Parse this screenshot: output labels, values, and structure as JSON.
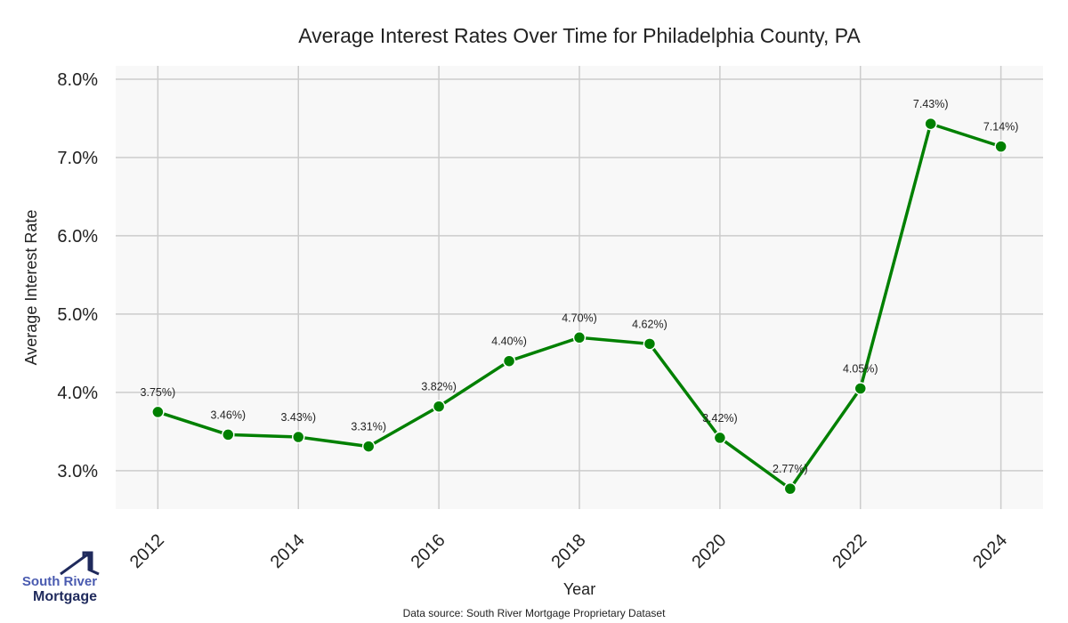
{
  "chart_data": {
    "type": "line",
    "title": "Average Interest Rates Over Time for Philadelphia County, PA",
    "xlabel": "Year",
    "ylabel": "Average Interest Rate",
    "x": [
      2012,
      2013,
      2014,
      2015,
      2016,
      2017,
      2018,
      2019,
      2020,
      2021,
      2022,
      2023,
      2024
    ],
    "values": [
      3.75,
      3.46,
      3.43,
      3.31,
      3.82,
      4.4,
      4.7,
      4.62,
      3.42,
      2.77,
      4.05,
      7.43,
      7.14
    ],
    "data_labels": [
      "3.75%)",
      "3.46%)",
      "3.43%)",
      "3.31%)",
      "3.82%)",
      "4.40%)",
      "4.70%)",
      "4.62%)",
      "3.42%)",
      "2.77%)",
      "4.05%)",
      "7.43%)",
      "7.14%)"
    ],
    "xticks": [
      2012,
      2014,
      2016,
      2018,
      2020,
      2022,
      2024
    ],
    "xtick_labels": [
      "2012",
      "2014",
      "2016",
      "2018",
      "2020",
      "2022",
      "2024"
    ],
    "yticks": [
      3,
      4,
      5,
      6,
      7,
      8
    ],
    "ytick_labels": [
      "3.0%",
      "4.0%",
      "5.0%",
      "6.0%",
      "7.0%",
      "8.0%"
    ],
    "xlim": [
      2011.4,
      2024.6
    ],
    "ylim": [
      2.51,
      8.17
    ],
    "grid": true,
    "line_color": "#008000",
    "background": "#f8f8f8"
  },
  "source": "Data source: South River Mortgage Proprietary Dataset",
  "logo": {
    "line1": "South River",
    "line2": "Mortgage"
  }
}
